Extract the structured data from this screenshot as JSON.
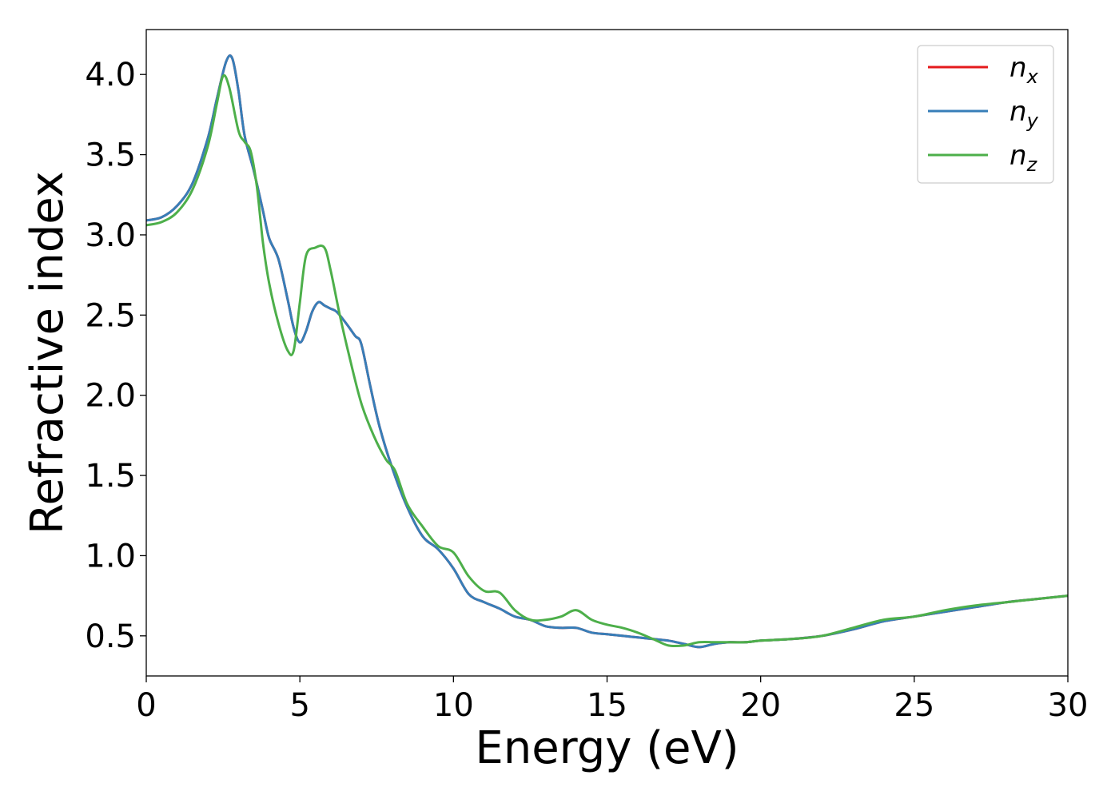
{
  "chart_data": {
    "type": "line",
    "xlabel": "Energy (eV)",
    "ylabel": "Refractive index",
    "xlim": [
      0,
      30
    ],
    "ylim": [
      0.25,
      4.28
    ],
    "xticks": [
      0,
      5,
      10,
      15,
      20,
      25,
      30
    ],
    "xtick_labels": [
      "0",
      "5",
      "10",
      "15",
      "20",
      "25",
      "30"
    ],
    "yticks": [
      0.5,
      1.0,
      1.5,
      2.0,
      2.5,
      3.0,
      3.5,
      4.0
    ],
    "ytick_labels": [
      "0.5",
      "1.0",
      "1.5",
      "2.0",
      "2.5",
      "3.0",
      "3.5",
      "4.0"
    ],
    "grid": false,
    "legend": "top-right",
    "series": [
      {
        "name": "n",
        "sub": "x",
        "color": "#e41a1c",
        "x": [
          0,
          0.5,
          1.0,
          1.5,
          2.0,
          2.3,
          2.6,
          2.8,
          3.0,
          3.2,
          3.5,
          3.8,
          4.0,
          4.3,
          4.6,
          4.8,
          5.0,
          5.2,
          5.4,
          5.6,
          5.8,
          6.0,
          6.2,
          6.5,
          6.8,
          7.0,
          7.3,
          7.6,
          8.0,
          8.5,
          9.0,
          9.5,
          10.0,
          10.5,
          11.0,
          11.5,
          12.0,
          12.5,
          13.0,
          13.5,
          14.0,
          14.5,
          15.0,
          15.5,
          16.0,
          16.5,
          17.0,
          17.5,
          18.0,
          18.5,
          19.0,
          19.5,
          20.0,
          21.0,
          22.0,
          23.0,
          24.0,
          25.0,
          26.0,
          27.0,
          28.0,
          29.0,
          30.0
        ],
        "values": [
          3.09,
          3.11,
          3.18,
          3.32,
          3.6,
          3.85,
          4.08,
          4.1,
          3.9,
          3.62,
          3.4,
          3.15,
          2.98,
          2.85,
          2.6,
          2.42,
          2.33,
          2.4,
          2.52,
          2.58,
          2.56,
          2.54,
          2.52,
          2.45,
          2.37,
          2.32,
          2.05,
          1.8,
          1.55,
          1.3,
          1.12,
          1.04,
          0.92,
          0.76,
          0.71,
          0.67,
          0.62,
          0.6,
          0.56,
          0.55,
          0.55,
          0.52,
          0.51,
          0.5,
          0.49,
          0.48,
          0.47,
          0.45,
          0.43,
          0.45,
          0.46,
          0.46,
          0.47,
          0.48,
          0.5,
          0.54,
          0.59,
          0.62,
          0.65,
          0.68,
          0.71,
          0.73,
          0.75
        ]
      },
      {
        "name": "n",
        "sub": "y",
        "color": "#377eb8",
        "x": [
          0,
          0.5,
          1.0,
          1.5,
          2.0,
          2.3,
          2.6,
          2.8,
          3.0,
          3.2,
          3.5,
          3.8,
          4.0,
          4.3,
          4.6,
          4.8,
          5.0,
          5.2,
          5.4,
          5.6,
          5.8,
          6.0,
          6.2,
          6.5,
          6.8,
          7.0,
          7.3,
          7.6,
          8.0,
          8.5,
          9.0,
          9.5,
          10.0,
          10.5,
          11.0,
          11.5,
          12.0,
          12.5,
          13.0,
          13.5,
          14.0,
          14.5,
          15.0,
          15.5,
          16.0,
          16.5,
          17.0,
          17.5,
          18.0,
          18.5,
          19.0,
          19.5,
          20.0,
          21.0,
          22.0,
          23.0,
          24.0,
          25.0,
          26.0,
          27.0,
          28.0,
          29.0,
          30.0
        ],
        "values": [
          3.09,
          3.11,
          3.18,
          3.32,
          3.6,
          3.85,
          4.08,
          4.1,
          3.9,
          3.62,
          3.4,
          3.15,
          2.98,
          2.85,
          2.6,
          2.42,
          2.33,
          2.4,
          2.52,
          2.58,
          2.56,
          2.54,
          2.52,
          2.45,
          2.37,
          2.32,
          2.05,
          1.8,
          1.55,
          1.3,
          1.12,
          1.04,
          0.92,
          0.76,
          0.71,
          0.67,
          0.62,
          0.6,
          0.56,
          0.55,
          0.55,
          0.52,
          0.51,
          0.5,
          0.49,
          0.48,
          0.47,
          0.45,
          0.43,
          0.45,
          0.46,
          0.46,
          0.47,
          0.48,
          0.5,
          0.54,
          0.59,
          0.62,
          0.65,
          0.68,
          0.71,
          0.73,
          0.75
        ]
      },
      {
        "name": "n",
        "sub": "z",
        "color": "#4daf4a",
        "x": [
          0,
          0.5,
          1.0,
          1.5,
          2.0,
          2.3,
          2.5,
          2.7,
          3.0,
          3.2,
          3.4,
          3.6,
          3.8,
          4.0,
          4.3,
          4.6,
          4.8,
          5.0,
          5.2,
          5.5,
          5.8,
          6.0,
          6.3,
          6.6,
          7.0,
          7.4,
          7.8,
          8.1,
          8.5,
          9.0,
          9.5,
          10.0,
          10.5,
          11.0,
          11.5,
          12.0,
          12.5,
          13.0,
          13.5,
          14.0,
          14.5,
          15.0,
          15.5,
          16.0,
          16.5,
          17.0,
          17.5,
          18.0,
          18.5,
          19.0,
          19.5,
          20.0,
          21.0,
          22.0,
          23.0,
          24.0,
          25.0,
          26.0,
          27.0,
          28.0,
          29.0,
          30.0
        ],
        "values": [
          3.06,
          3.08,
          3.14,
          3.28,
          3.55,
          3.82,
          3.99,
          3.92,
          3.65,
          3.58,
          3.52,
          3.3,
          2.95,
          2.7,
          2.45,
          2.28,
          2.28,
          2.58,
          2.87,
          2.92,
          2.92,
          2.78,
          2.5,
          2.25,
          1.95,
          1.75,
          1.6,
          1.53,
          1.32,
          1.18,
          1.06,
          1.02,
          0.87,
          0.78,
          0.77,
          0.66,
          0.6,
          0.6,
          0.62,
          0.66,
          0.6,
          0.57,
          0.55,
          0.52,
          0.48,
          0.44,
          0.44,
          0.46,
          0.46,
          0.46,
          0.46,
          0.47,
          0.48,
          0.5,
          0.55,
          0.6,
          0.62,
          0.66,
          0.69,
          0.71,
          0.73,
          0.75
        ]
      }
    ]
  }
}
